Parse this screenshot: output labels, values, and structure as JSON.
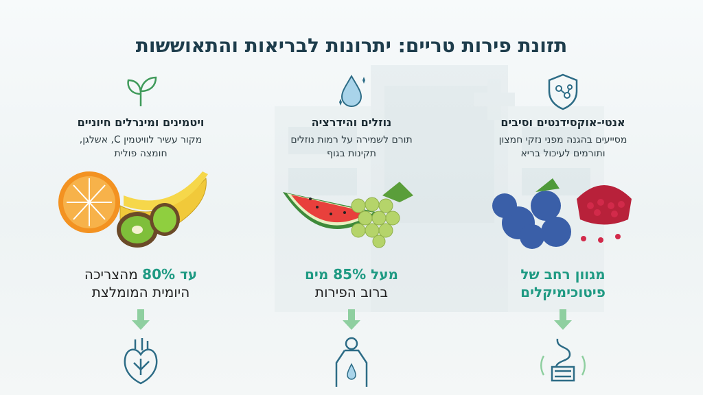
{
  "title": "תזונת פירות טריים: יתרונות לבריאות והתאוששות",
  "columns": [
    {
      "heading": "אנטי-אוקסידנטים וסיבים",
      "description": "מסייעים בהגנה מפני נזקי חמצון ותורמים לעיכול בריא",
      "stat": {
        "emphasis": "מגוון רחב של פיטוכימיקלים"
      }
    },
    {
      "heading": "נוזלים והידרציה",
      "description": "תורם לשמירה על רמות נוזלים תקינות בגוף",
      "stat": {
        "emphasis": "מעל 85% מים",
        "rest": "ברוב הפירות"
      }
    },
    {
      "heading": "ויטמינים ומינרלים חיוניים",
      "description": "מקור עשיר לוויטמין C, אשלגן, חומצה פולית",
      "stat": {
        "emphasis": "עד 80%",
        "rest": "מהצריכה היומית המומלצת"
      }
    }
  ]
}
